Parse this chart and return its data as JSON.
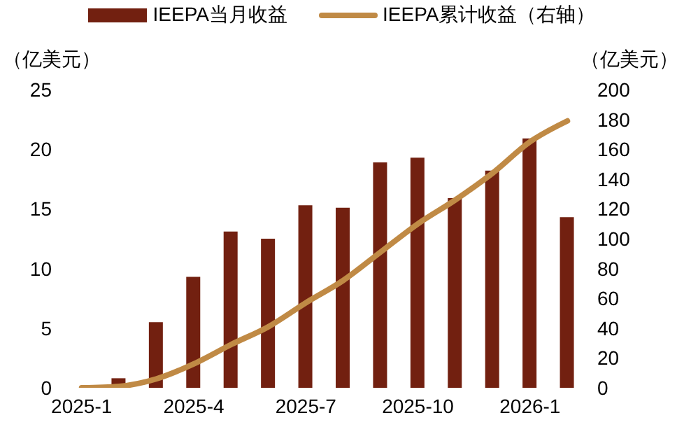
{
  "chart_data": {
    "type": "bar",
    "categories": [
      "2025-1",
      null,
      null,
      "2025-4",
      null,
      null,
      "2025-7",
      null,
      null,
      "2025-10",
      null,
      null,
      "2026-1",
      null
    ],
    "ylabel": "（亿美元）",
    "y2label": "（亿美元）",
    "series": [
      {
        "name": "IEEPA当月收益",
        "color": "#722010",
        "values": [
          0,
          0.8,
          5.5,
          9.3,
          13.1,
          12.5,
          15.3,
          15.1,
          18.9,
          19.3,
          15.9,
          18.2,
          20.9,
          14.3
        ]
      },
      {
        "name": "IEEPA累计收益（右轴）",
        "type": "line",
        "axis": "y2",
        "color": "#c08a45",
        "values": [
          0,
          1,
          6,
          16,
          29,
          41,
          57,
          72,
          91,
          110,
          126,
          144,
          165,
          179
        ]
      }
    ],
    "ylim": [
      0,
      25
    ],
    "yticks": [
      0,
      5,
      10,
      15,
      20,
      25
    ],
    "y2lim": [
      0,
      200
    ],
    "y2ticks": [
      0,
      20,
      40,
      60,
      80,
      100,
      120,
      140,
      160,
      180,
      200
    ],
    "grid": false,
    "legend": "top",
    "marker": "none",
    "line_style": "solid"
  }
}
